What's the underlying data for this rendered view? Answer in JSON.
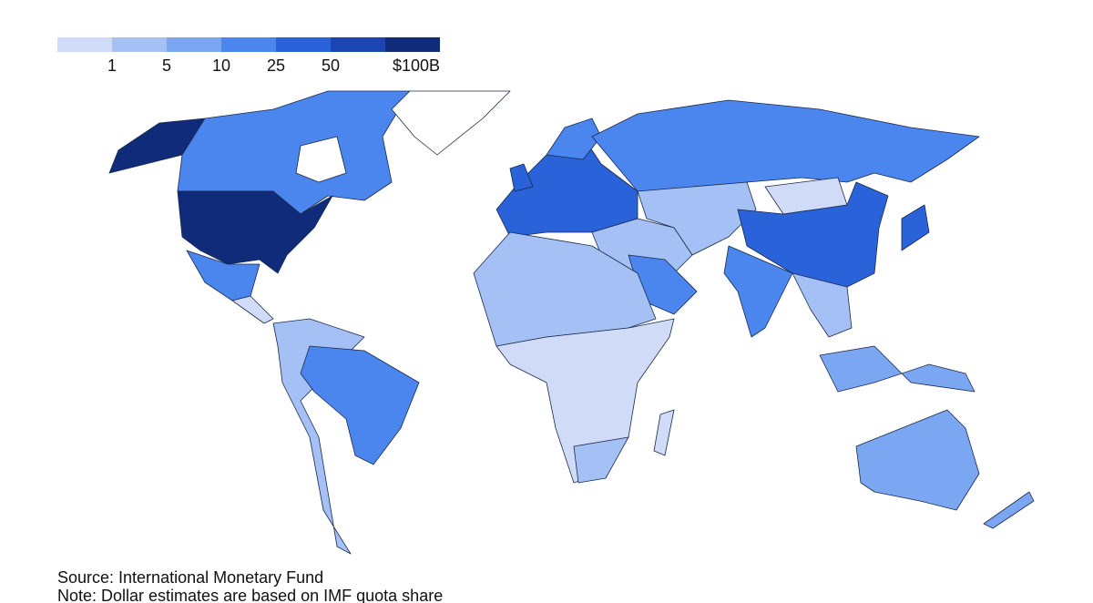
{
  "legend": {
    "colors": [
      "#d0dbf7",
      "#a4c0f4",
      "#7ba6f1",
      "#4a86ee",
      "#2962d9",
      "#1a45b3",
      "#0f2b7a"
    ],
    "labels": [
      "1",
      "5",
      "10",
      "25",
      "50",
      "$100B"
    ]
  },
  "source": "Source: International Monetary Fund",
  "note": "Note: Dollar estimates are based on IMF quota share"
}
